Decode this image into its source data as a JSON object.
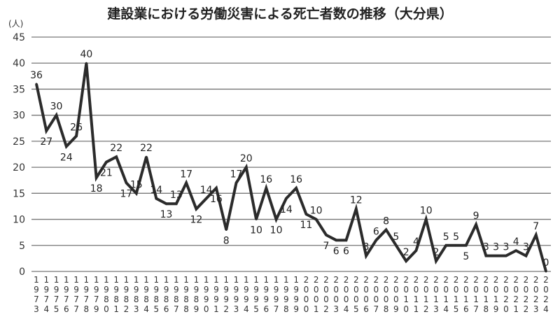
{
  "chart_data": {
    "type": "line",
    "title": "建設業における労働災害による死亡者数の推移（大分県）",
    "ylabel": "(人)",
    "xlabel": "",
    "ylim": [
      0,
      45
    ],
    "yticks": [
      "0",
      "5",
      "10",
      "15",
      "20",
      "25",
      "30",
      "35",
      "40",
      "45"
    ],
    "grid": true,
    "x": [
      "1973",
      "1974",
      "1975",
      "1976",
      "1977",
      "1978",
      "1979",
      "1980",
      "1981",
      "1982",
      "1983",
      "1984",
      "1985",
      "1986",
      "1987",
      "1988",
      "1989",
      "1990",
      "1991",
      "1992",
      "1993",
      "1994",
      "1995",
      "1996",
      "1997",
      "1998",
      "1999",
      "2000",
      "2001",
      "2002",
      "2003",
      "2004",
      "2005",
      "2006",
      "2007",
      "2008",
      "2009",
      "2010",
      "2011",
      "2012",
      "2013",
      "2014",
      "2015",
      "2016",
      "2017",
      "2018",
      "2019",
      "2020",
      "2021",
      "2022",
      "2023",
      "2024"
    ],
    "series": [
      {
        "name": "死亡者数",
        "color": "#2b2b2b",
        "values": [
          36,
          27,
          30,
          24,
          26,
          40,
          18,
          21,
          22,
          17,
          15,
          22,
          14,
          13,
          13,
          17,
          12,
          14,
          16,
          8,
          17,
          20,
          10,
          16,
          10,
          14,
          16,
          11,
          10,
          7,
          6,
          6,
          12,
          3,
          6,
          8,
          5,
          2,
          4,
          10,
          2,
          5,
          5,
          5,
          9,
          3,
          3,
          3,
          4,
          3,
          7,
          0
        ]
      }
    ]
  }
}
